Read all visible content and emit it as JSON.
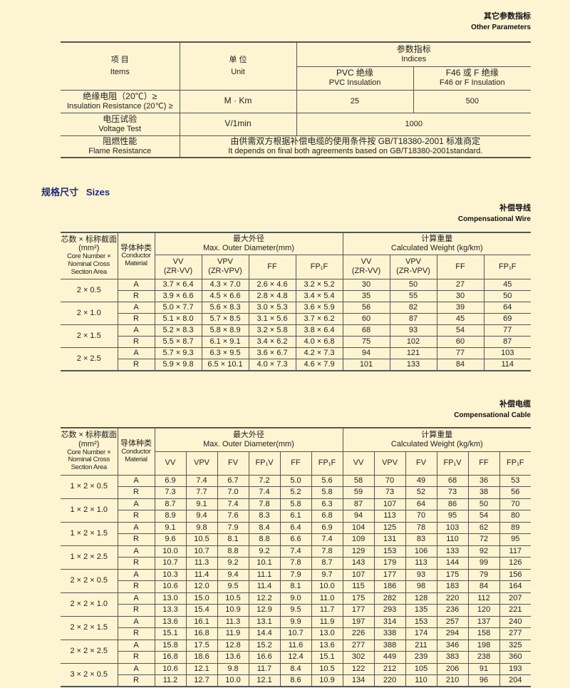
{
  "other_params": {
    "title_zh": "其它参数指标",
    "title_en": "Other Parameters",
    "headers": {
      "items_zh": "项 目",
      "items_en": "Items",
      "unit_zh": "单 位",
      "unit_en": "Unit",
      "indices_zh": "参数指标",
      "indices_en": "Indices",
      "pvc_zh": "PVC 绝缘",
      "pvc_en": "PVC Insulation",
      "f46_zh": "F46 或 F 绝缘",
      "f46_en": "F46 or F Insulation"
    },
    "rows": [
      {
        "zh": "绝缘电阻（20℃）≥",
        "en": "Insulation Resistance (20℃) ≥",
        "unit": "M   · Km",
        "pvc": "25",
        "f46": "500"
      },
      {
        "zh": "电压试验",
        "en": "Voltage Test",
        "unit": "V/1min",
        "value": "1000"
      },
      {
        "zh": "阻燃性能",
        "en": "Flame Resistance",
        "value_zh": "由供需双方根据补偿电缆的使用条件按 GB/T18380-2001 标准商定",
        "value_en": "It depends on final both agreements based on GB/T18380-2001standard."
      }
    ]
  },
  "sizes_heading": "规格尺寸   Sizes",
  "common_headers": {
    "core_zh": "芯数 × 标称截面(mm²)",
    "core_en": "Core Number × Nominal Cross Section Area",
    "cond_zh": "导体种类",
    "cond_en": "Conductor Material",
    "diam_zh": "最大外径",
    "diam_en": "Max. Outer Diameter(mm)",
    "weight_zh": "计算重量",
    "weight_en": "Calculated Weight  (kg/km)"
  },
  "wire": {
    "title_zh": "补偿导线",
    "title_en": "Compensational Wire",
    "diam_cols": [
      "VV\n(ZR-VV)",
      "VPV\n(ZR-VPV)",
      "FF",
      "FP₁F"
    ],
    "weight_cols": [
      "VV\n(ZR-VV)",
      "VPV\n(ZR-VPV)",
      "FF",
      "FP₁F"
    ],
    "groups": [
      {
        "size": "2 × 0.5",
        "rows": [
          [
            "A",
            "3.7 × 6.4",
            "4.3 × 7.0",
            "2.6 × 4.6",
            "3.2 × 5.2",
            "30",
            "50",
            "27",
            "45"
          ],
          [
            "R",
            "3.9 × 6.6",
            "4.5 × 6.6",
            "2.8 × 4.8",
            "3.4 × 5.4",
            "35",
            "55",
            "30",
            "50"
          ]
        ]
      },
      {
        "size": "2 × 1.0",
        "rows": [
          [
            "A",
            "5.0 × 7.7",
            "5.6 × 8.3",
            "3.0 × 5.3",
            "3.6 × 5.9",
            "56",
            "82",
            "39",
            "64"
          ],
          [
            "R",
            "5.1 × 8.0",
            "5.7 × 8.5",
            "3.1 × 5.6",
            "3.7 × 6.2",
            "60",
            "87",
            "45",
            "69"
          ]
        ]
      },
      {
        "size": "2 × 1.5",
        "rows": [
          [
            "A",
            "5.2 × 8.3",
            "5.8 × 8.9",
            "3.2 × 5.8",
            "3.8 × 6.4",
            "68",
            "93",
            "54",
            "77"
          ],
          [
            "R",
            "5.5 × 8.7",
            "6.1 × 9.1",
            "3.4 × 6.2",
            "4.0 × 6.8",
            "75",
            "102",
            "60",
            "87"
          ]
        ]
      },
      {
        "size": "2 × 2.5",
        "rows": [
          [
            "A",
            "5.7 × 9.3",
            "6.3 × 9.5",
            "3.6 × 6.7",
            "4.2 × 7.3",
            "94",
            "121",
            "77",
            "103"
          ],
          [
            "R",
            "5.9 × 9.8",
            "6.5 × 10.1",
            "4.0 × 7.3",
            "4.6 × 7.9",
            "101",
            "133",
            "84",
            "114"
          ]
        ]
      }
    ]
  },
  "cable": {
    "title_zh": "补偿电缆",
    "title_en": "Compensational Cable",
    "diam_cols": [
      "VV",
      "VPV",
      "FV",
      "FP₁V",
      "FF",
      "FP₁F"
    ],
    "weight_cols": [
      "VV",
      "VPV",
      "FV",
      "FP₁V",
      "FF",
      "FP₁F"
    ],
    "groups": [
      {
        "size": "1 × 2 × 0.5",
        "rows": [
          [
            "A",
            "6.9",
            "7.4",
            "6.7",
            "7.2",
            "5.0",
            "5.6",
            "58",
            "70",
            "49",
            "68",
            "36",
            "53"
          ],
          [
            "R",
            "7.3",
            "7.7",
            "7.0",
            "7.4",
            "5.2",
            "5.8",
            "59",
            "73",
            "52",
            "73",
            "38",
            "56"
          ]
        ]
      },
      {
        "size": "1 × 2 × 1.0",
        "rows": [
          [
            "A",
            "8.7",
            "9.1",
            "7.4",
            "7.8",
            "5.8",
            "6.3",
            "87",
            "107",
            "64",
            "86",
            "50",
            "70"
          ],
          [
            "R",
            "8.9",
            "9.4",
            "7.6",
            "8.3",
            "6.1",
            "6.8",
            "94",
            "113",
            "70",
            "95",
            "54",
            "80"
          ]
        ]
      },
      {
        "size": "1 × 2 × 1.5",
        "rows": [
          [
            "A",
            "9.1",
            "9.8",
            "7.9",
            "8.4",
            "6.4",
            "6.9",
            "104",
            "125",
            "78",
            "103",
            "62",
            "89"
          ],
          [
            "R",
            "9.6",
            "10.5",
            "8.1",
            "8.8",
            "6.6",
            "7.4",
            "109",
            "131",
            "83",
            "110",
            "72",
            "95"
          ]
        ]
      },
      {
        "size": "1 × 2 × 2.5",
        "rows": [
          [
            "A",
            "10.0",
            "10.7",
            "8.8",
            "9.2",
            "7.4",
            "7.8",
            "129",
            "153",
            "106",
            "133",
            "92",
            "117"
          ],
          [
            "R",
            "10.7",
            "11.3",
            "9.2",
            "10.1",
            "7.8",
            "8.7",
            "143",
            "179",
            "113",
            "144",
            "99",
            "126"
          ]
        ]
      },
      {
        "size": "2 × 2 × 0.5",
        "rows": [
          [
            "A",
            "10.3",
            "11.4",
            "9.4",
            "11.1",
            "7.9",
            "9.7",
            "107",
            "177",
            "93",
            "175",
            "79",
            "156"
          ],
          [
            "R",
            "10.6",
            "12.0",
            "9.5",
            "11.4",
            "8.1",
            "10.0",
            "115",
            "186",
            "98",
            "183",
            "84",
            "164"
          ]
        ]
      },
      {
        "size": "2 × 2 × 1.0",
        "rows": [
          [
            "A",
            "13.0",
            "15.0",
            "10.5",
            "12.2",
            "9.0",
            "11.0",
            "175",
            "282",
            "128",
            "220",
            "112",
            "207"
          ],
          [
            "R",
            "13.3",
            "15.4",
            "10.9",
            "12.9",
            "9.5",
            "11.7",
            "177",
            "293",
            "135",
            "236",
            "120",
            "221"
          ]
        ]
      },
      {
        "size": "2 × 2 × 1.5",
        "rows": [
          [
            "A",
            "13.6",
            "16.1",
            "11.3",
            "13.1",
            "9.9",
            "11.9",
            "197",
            "314",
            "153",
            "257",
            "137",
            "240"
          ],
          [
            "R",
            "15.1",
            "16.8",
            "11.9",
            "14.4",
            "10.7",
            "13.0",
            "226",
            "338",
            "174",
            "294",
            "158",
            "277"
          ]
        ]
      },
      {
        "size": "2 × 2 × 2.5",
        "rows": [
          [
            "A",
            "15.8",
            "17.5",
            "12.8",
            "15.2",
            "11.6",
            "13.6",
            "277",
            "388",
            "211",
            "346",
            "198",
            "325"
          ],
          [
            "R",
            "16.8",
            "18.6",
            "13.6",
            "16.6",
            "12.4",
            "15.1",
            "302",
            "449",
            "239",
            "383",
            "238",
            "360"
          ]
        ]
      },
      {
        "size": "3 × 2 × 0.5",
        "rows": [
          [
            "A",
            "10.6",
            "12.1",
            "9.8",
            "11.7",
            "8.4",
            "10.5",
            "122",
            "212",
            "105",
            "206",
            "91",
            "193"
          ],
          [
            "R",
            "11.2",
            "12.7",
            "10.0",
            "12.1",
            "8.6",
            "10.9",
            "134",
            "220",
            "110",
            "210",
            "96",
            "204"
          ]
        ]
      }
    ]
  }
}
